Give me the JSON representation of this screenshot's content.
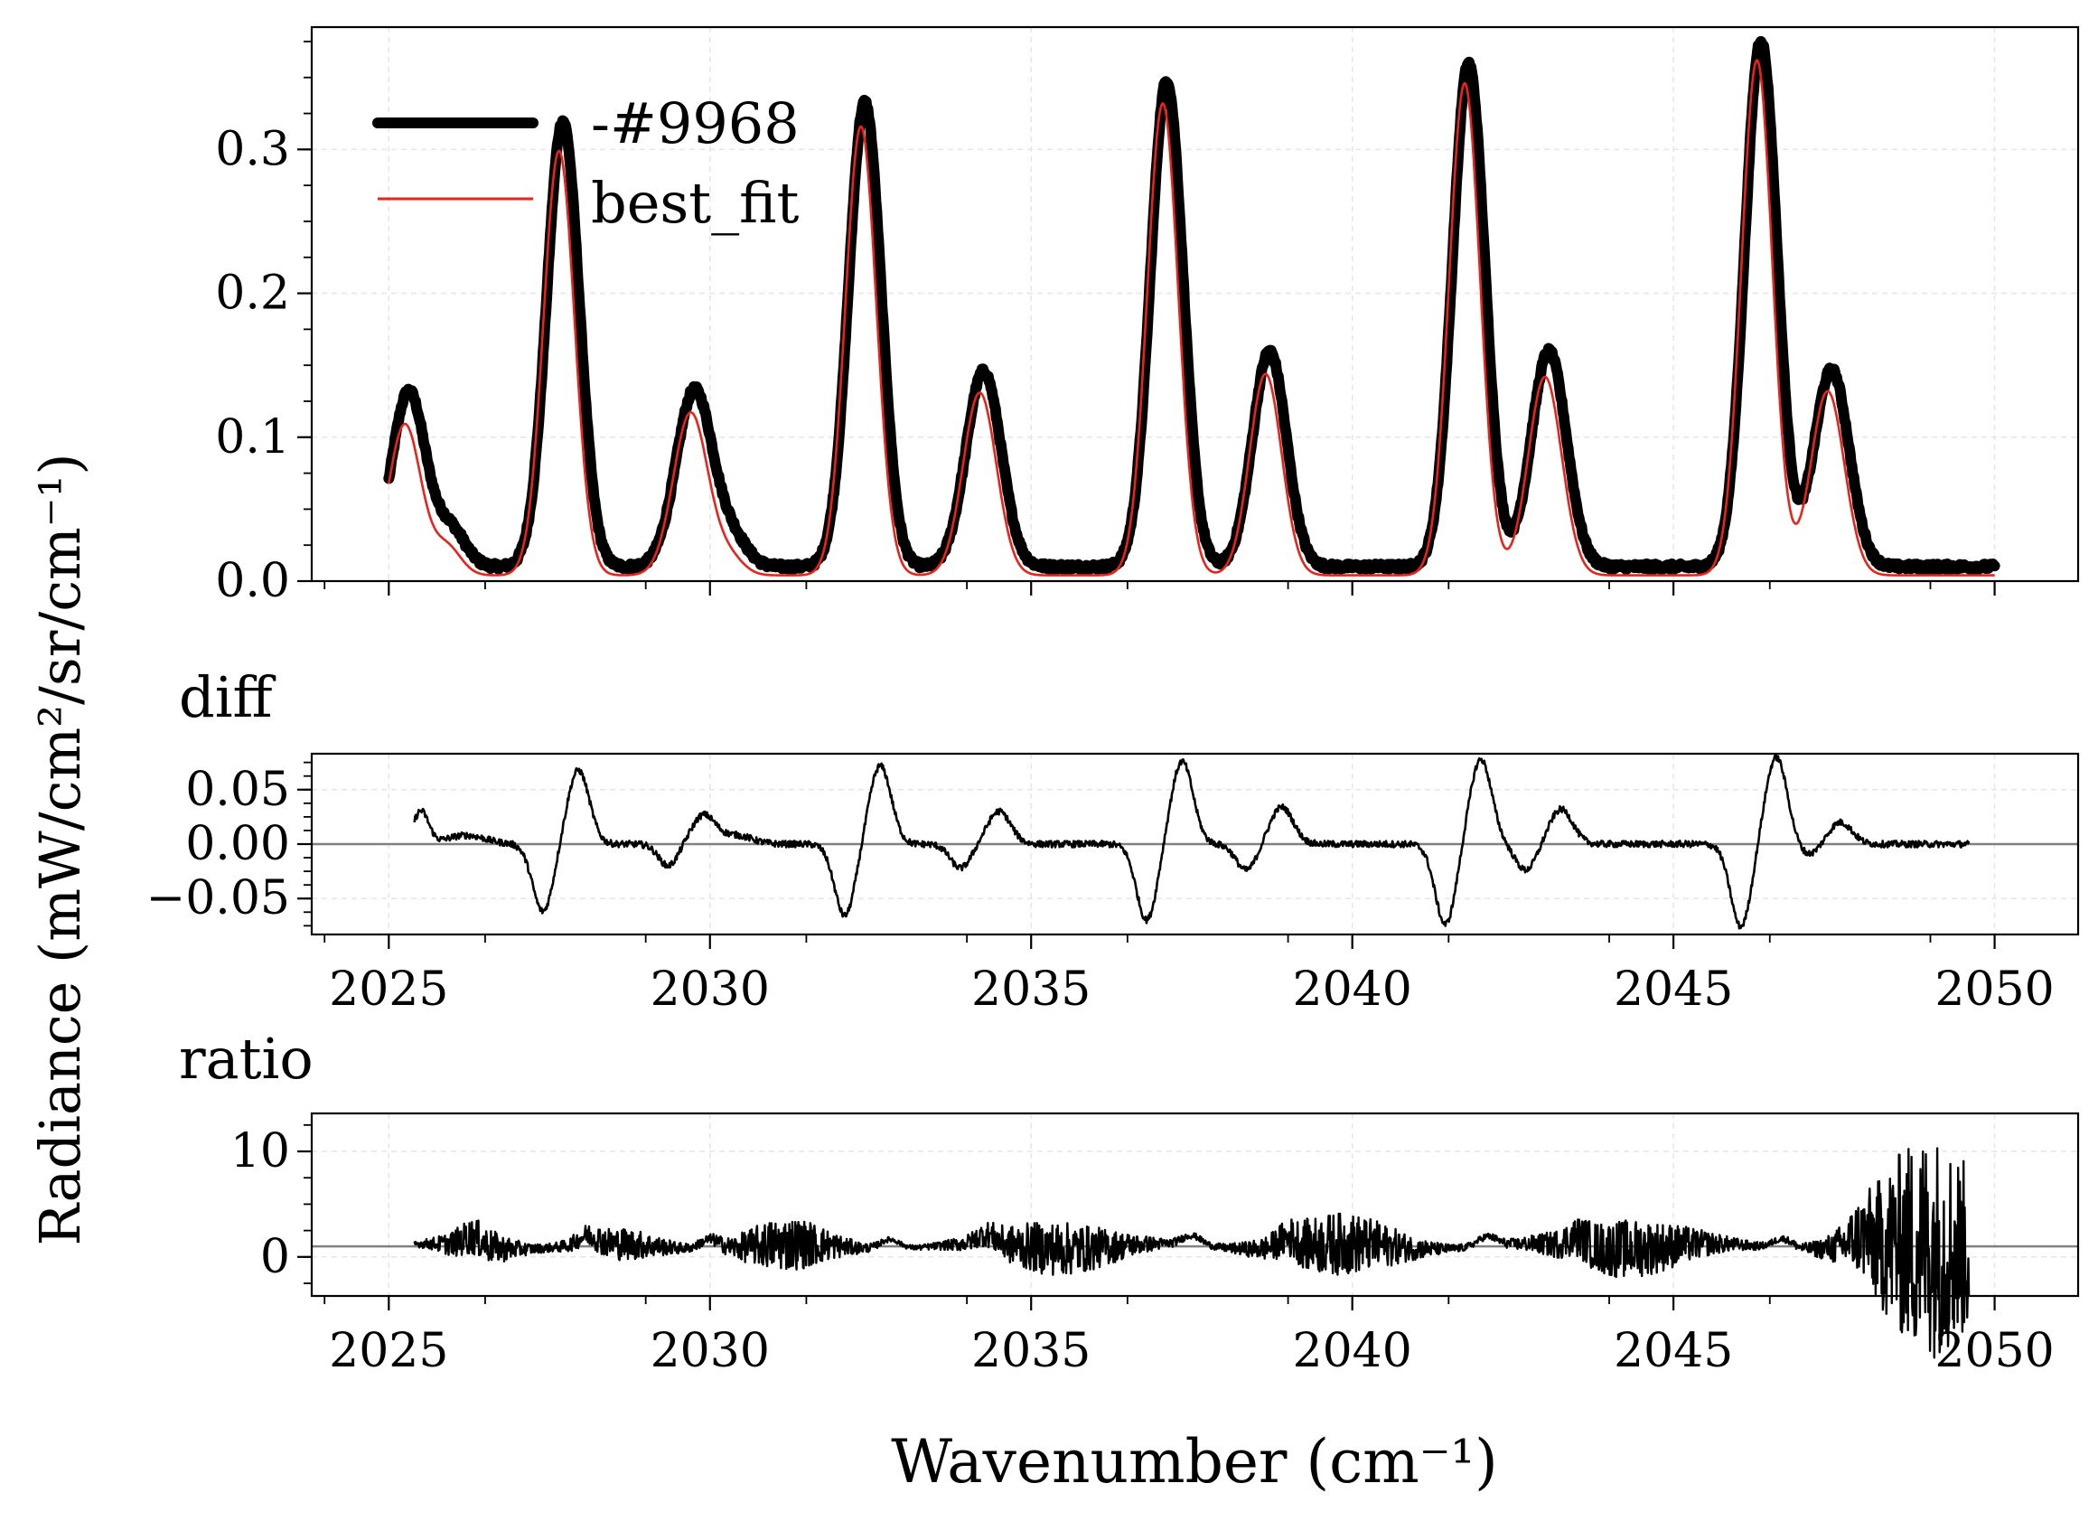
{
  "labels": {
    "ylabel": "Radiance (mW/cm²/sr/cm⁻¹)",
    "xlabel": "Wavenumber (cm⁻¹)",
    "diff_title": "diff",
    "ratio_title": "ratio"
  },
  "colors": {
    "data": "#000000",
    "fit": "#e8231b",
    "ref": "#808080",
    "grid": "#e6e6e6"
  },
  "chart_data": [
    {
      "id": "spectrum",
      "type": "line",
      "title": "",
      "xlabel": "",
      "ylabel": "Radiance (mW/cm²/sr/cm⁻¹)",
      "xlim": [
        2023.8,
        2051.3
      ],
      "ylim": [
        0.0,
        0.385
      ],
      "yticks": [
        0.0,
        0.1,
        0.2,
        0.3
      ],
      "ytick_labels": [
        "0.0",
        "0.1",
        "0.2",
        "0.3"
      ],
      "xticks": [
        2025,
        2030,
        2035,
        2040,
        2045,
        2050
      ],
      "grid": true,
      "legend": {
        "position": "top-left",
        "entries": [
          "-#9968",
          "best_fit"
        ]
      },
      "series_names": [
        "-#9968",
        "best_fit"
      ],
      "x_range": [
        2025.0,
        2050.0
      ],
      "baseline": 0.004,
      "peaks": [
        {
          "center": 2025.25,
          "fit": 0.105,
          "data": 0.122,
          "width": 0.25
        },
        {
          "center": 2025.9,
          "fit": 0.02,
          "data": 0.026,
          "width": 0.22
        },
        {
          "center": 2027.65,
          "fit": 0.295,
          "data": 0.31,
          "width": 0.24
        },
        {
          "center": 2029.7,
          "fit": 0.113,
          "data": 0.123,
          "width": 0.27
        },
        {
          "center": 2030.3,
          "fit": 0.012,
          "data": 0.018,
          "width": 0.22
        },
        {
          "center": 2032.35,
          "fit": 0.312,
          "data": 0.323,
          "width": 0.24
        },
        {
          "center": 2034.2,
          "fit": 0.127,
          "data": 0.136,
          "width": 0.26
        },
        {
          "center": 2037.05,
          "fit": 0.328,
          "data": 0.338,
          "width": 0.24
        },
        {
          "center": 2038.65,
          "fit": 0.14,
          "data": 0.15,
          "width": 0.25
        },
        {
          "center": 2041.75,
          "fit": 0.342,
          "data": 0.35,
          "width": 0.24
        },
        {
          "center": 2043.0,
          "fit": 0.138,
          "data": 0.15,
          "width": 0.26
        },
        {
          "center": 2046.3,
          "fit": 0.358,
          "data": 0.366,
          "width": 0.24
        },
        {
          "center": 2047.4,
          "fit": 0.128,
          "data": 0.137,
          "width": 0.26
        }
      ]
    },
    {
      "id": "diff",
      "type": "line",
      "title": "diff",
      "xlim": [
        2023.8,
        2051.3
      ],
      "ylim": [
        -0.083,
        0.083
      ],
      "yticks": [
        -0.05,
        0.0,
        0.05
      ],
      "ytick_labels": [
        "−0.05",
        "0.00",
        "0.05"
      ],
      "xticks": [
        2025,
        2030,
        2035,
        2040,
        2045,
        2050
      ],
      "xtick_labels": [
        "2025",
        "2030",
        "2035",
        "2040",
        "2045",
        "2050"
      ],
      "x_range": [
        2025.4,
        2049.6
      ],
      "reference_line": 0.0,
      "features": [
        {
          "center": 2025.5,
          "amp": 0.03,
          "width": 0.12
        },
        {
          "center": 2026.2,
          "amp": 0.008,
          "width": 0.3
        },
        {
          "center": 2027.4,
          "amp": -0.062,
          "width": 0.16
        },
        {
          "center": 2027.95,
          "amp": 0.068,
          "width": 0.17
        },
        {
          "center": 2029.35,
          "amp": -0.02,
          "width": 0.15
        },
        {
          "center": 2029.9,
          "amp": 0.026,
          "width": 0.18
        },
        {
          "center": 2030.4,
          "amp": 0.008,
          "width": 0.25
        },
        {
          "center": 2032.1,
          "amp": -0.066,
          "width": 0.16
        },
        {
          "center": 2032.65,
          "amp": 0.072,
          "width": 0.17
        },
        {
          "center": 2033.9,
          "amp": -0.022,
          "width": 0.16
        },
        {
          "center": 2034.5,
          "amp": 0.03,
          "width": 0.18
        },
        {
          "center": 2036.8,
          "amp": -0.07,
          "width": 0.16
        },
        {
          "center": 2037.35,
          "amp": 0.076,
          "width": 0.17
        },
        {
          "center": 2038.35,
          "amp": -0.024,
          "width": 0.16
        },
        {
          "center": 2038.9,
          "amp": 0.034,
          "width": 0.18
        },
        {
          "center": 2041.45,
          "amp": -0.074,
          "width": 0.16
        },
        {
          "center": 2042.0,
          "amp": 0.078,
          "width": 0.17
        },
        {
          "center": 2042.7,
          "amp": -0.024,
          "width": 0.16
        },
        {
          "center": 2043.25,
          "amp": 0.032,
          "width": 0.18
        },
        {
          "center": 2046.05,
          "amp": -0.076,
          "width": 0.16
        },
        {
          "center": 2046.6,
          "amp": 0.08,
          "width": 0.17
        },
        {
          "center": 2047.1,
          "amp": -0.01,
          "width": 0.16
        },
        {
          "center": 2047.6,
          "amp": 0.02,
          "width": 0.18
        }
      ]
    },
    {
      "id": "ratio",
      "type": "line",
      "title": "ratio",
      "xlim": [
        2023.8,
        2051.3
      ],
      "ylim": [
        -3.7,
        13.6
      ],
      "yticks": [
        0,
        10
      ],
      "ytick_labels": [
        "0",
        "10"
      ],
      "xticks": [
        2025,
        2030,
        2035,
        2040,
        2045,
        2050
      ],
      "xtick_labels": [
        "2025",
        "2030",
        "2035",
        "2040",
        "2045",
        "2050"
      ],
      "x_range": [
        2025.4,
        2049.6
      ],
      "reference_line": 1.0,
      "noise_zones": [
        {
          "center": 2026.4,
          "width": 0.45,
          "amp": 1.6
        },
        {
          "center": 2028.6,
          "width": 0.55,
          "amp": 1.4
        },
        {
          "center": 2031.2,
          "width": 0.6,
          "amp": 2.4
        },
        {
          "center": 2035.4,
          "width": 0.85,
          "amp": 2.4
        },
        {
          "center": 2039.8,
          "width": 0.8,
          "amp": 2.8
        },
        {
          "center": 2044.3,
          "width": 0.9,
          "amp": 2.6
        },
        {
          "center": 2049.0,
          "width": 0.75,
          "amp": 10.5
        }
      ],
      "bumps": [
        2026.3,
        2028.1,
        2030.0,
        2032.8,
        2034.3,
        2037.5,
        2039.0,
        2042.1,
        2043.5,
        2046.7,
        2047.9
      ]
    }
  ]
}
